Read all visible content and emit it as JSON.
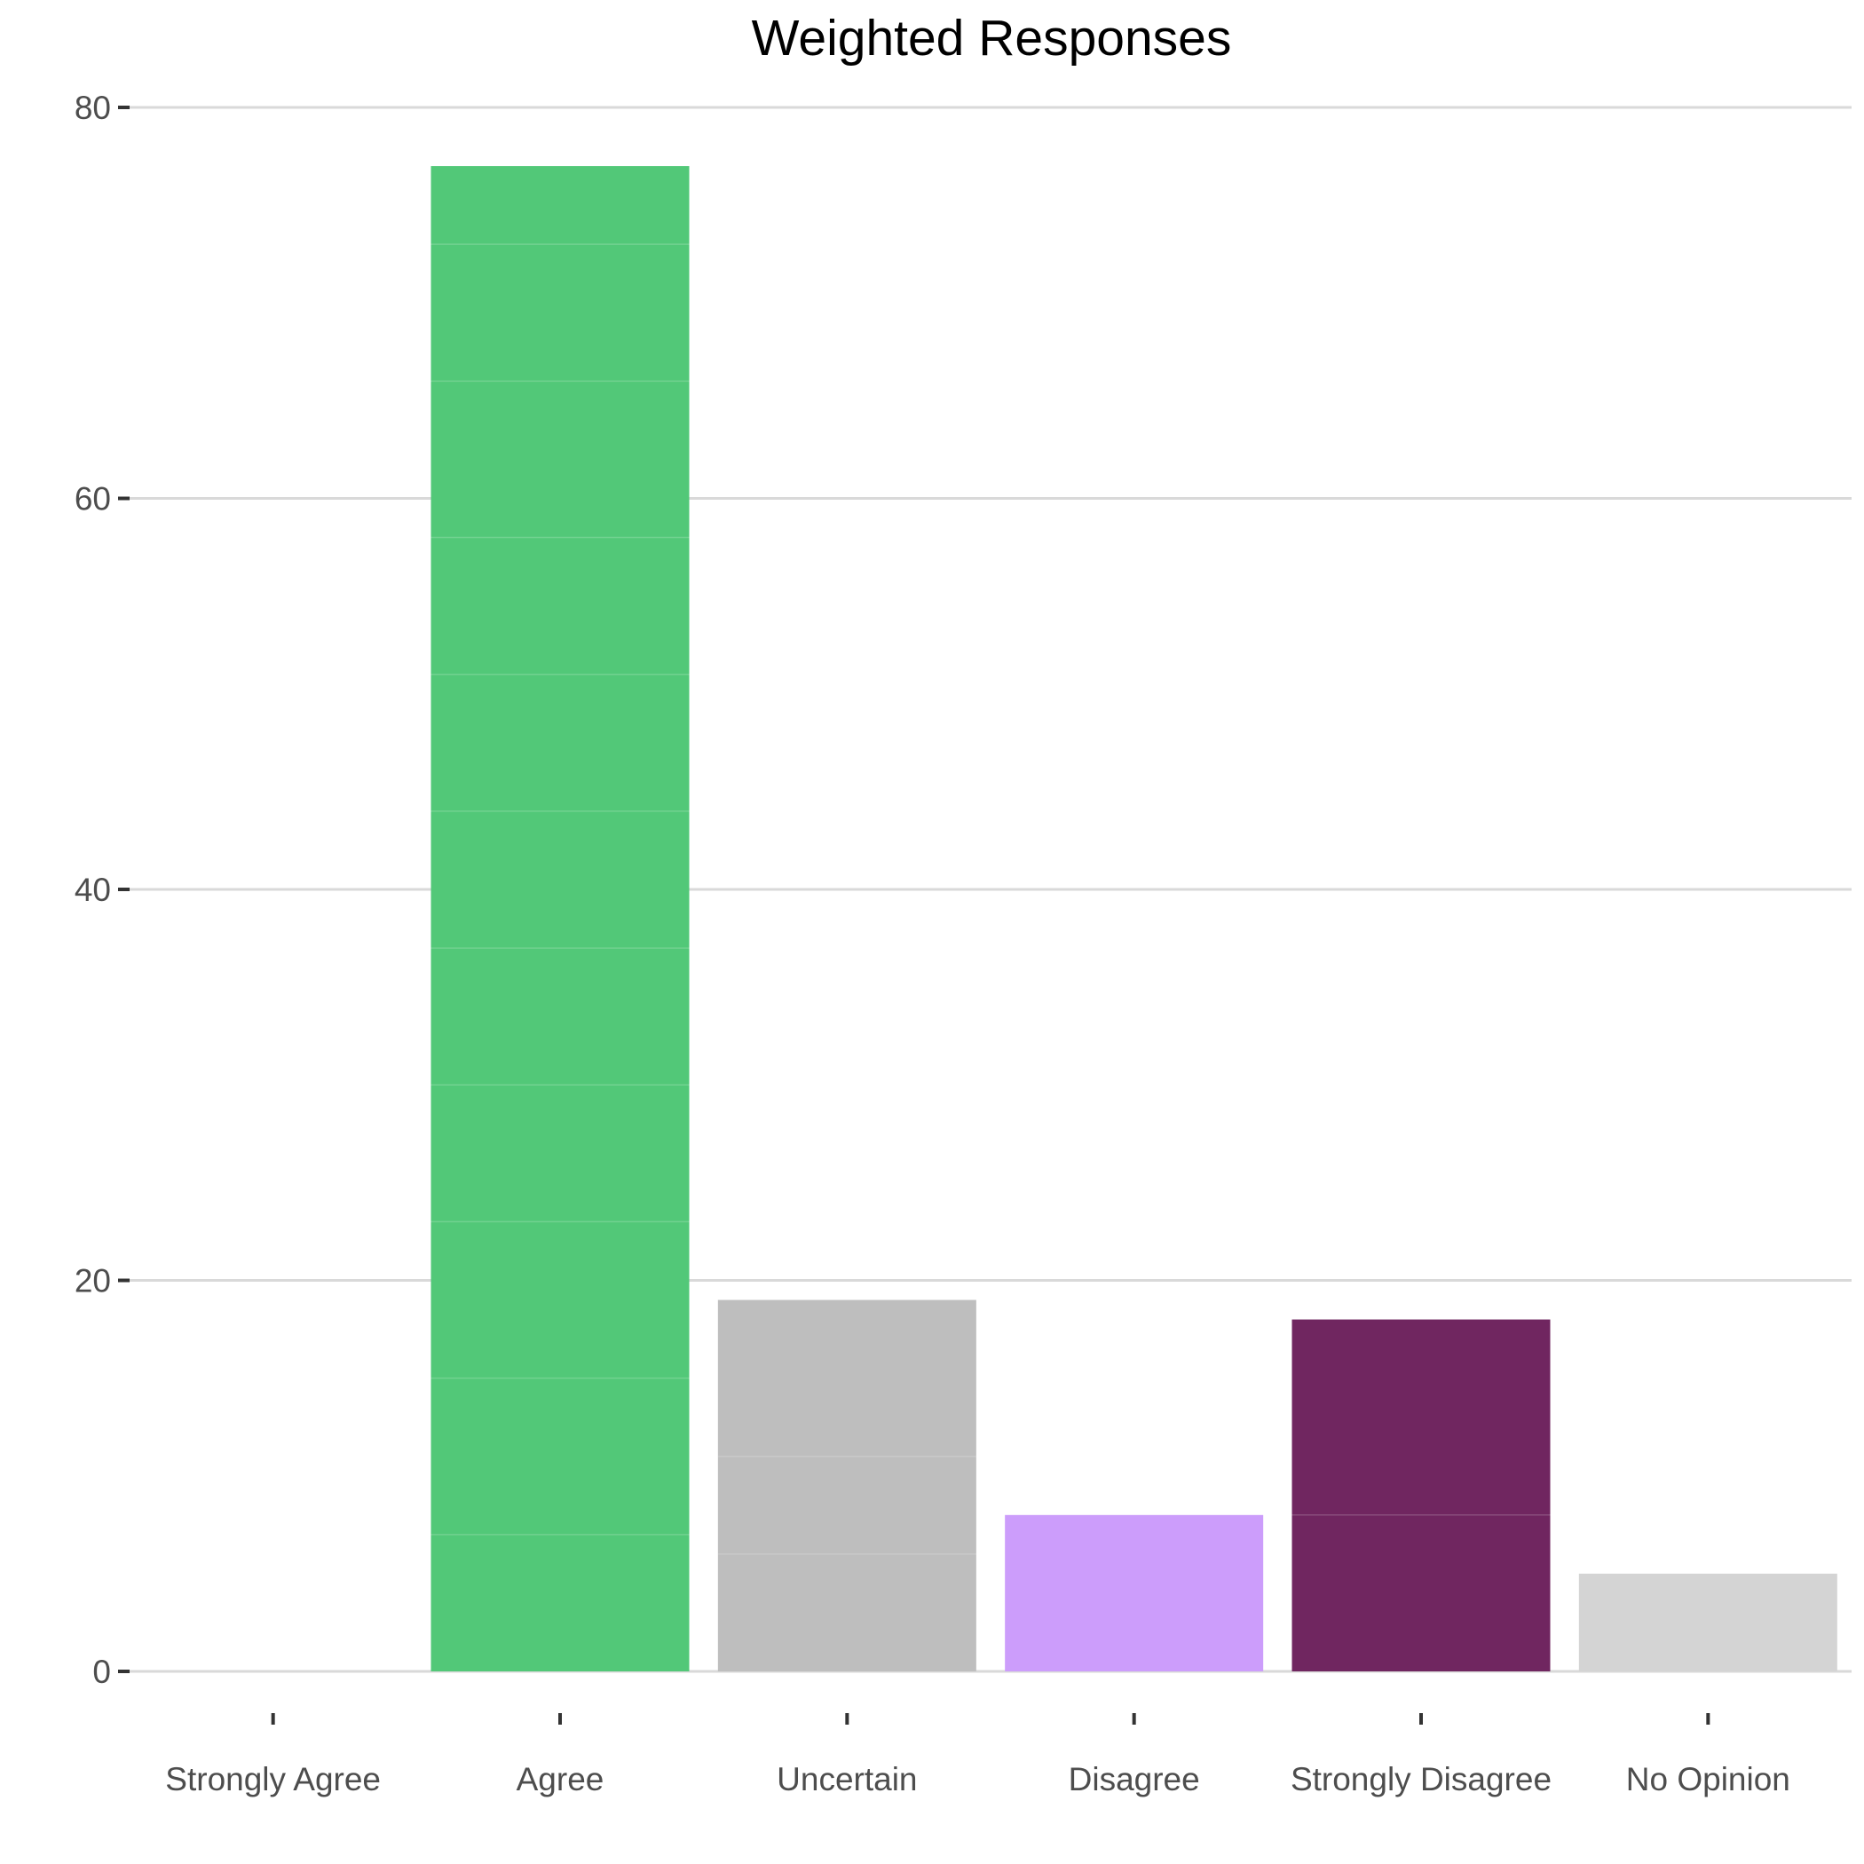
{
  "chart_data": {
    "type": "bar",
    "title": "Weighted Responses",
    "xlabel": "",
    "ylabel": "",
    "categories": [
      "Strongly Agree",
      "Agree",
      "Uncertain",
      "Disagree",
      "Strongly Disagree",
      "No Opinion"
    ],
    "values": [
      0,
      77,
      19,
      8,
      18,
      5
    ],
    "colors": [
      "#52c878",
      "#52c878",
      "#bebebe",
      "#cc9dfb",
      "#702660",
      "#d4d4d4"
    ],
    "segments": [
      [],
      [
        7,
        8,
        8,
        7,
        7,
        7,
        7,
        7,
        8,
        7,
        4
      ],
      [
        6,
        5,
        8
      ],
      [
        8
      ],
      [
        8,
        10
      ],
      [
        5
      ]
    ],
    "ylim": [
      0,
      80
    ],
    "yticks": [
      0,
      20,
      40,
      60,
      80
    ],
    "grid": true,
    "legend": "none"
  }
}
